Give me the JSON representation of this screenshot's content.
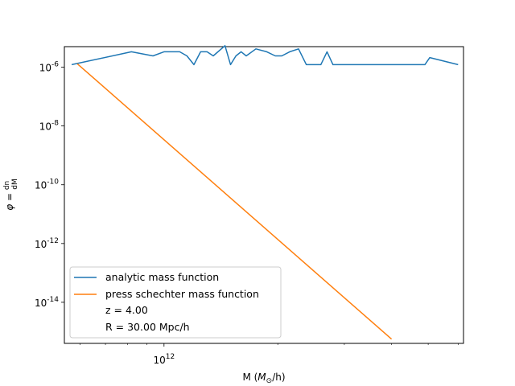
{
  "chart_data": {
    "type": "line",
    "xlabel": "M (M_⊙/h)",
    "ylabel": "φ = dn/dM",
    "x_scale": "log",
    "y_scale": "log",
    "xlim": [
      545000000000.0,
      6200000000000.0
    ],
    "ylim": [
      4e-16,
      5e-06
    ],
    "x_tick_labels": [
      {
        "value": 1000000000000.0,
        "label": "10^12"
      }
    ],
    "y_tick_labels": [
      {
        "value": 1e-06,
        "label": "10^-6"
      },
      {
        "value": 1e-08,
        "label": "10^-8"
      },
      {
        "value": 1e-10,
        "label": "10^-10"
      },
      {
        "value": 1e-12,
        "label": "10^-12"
      },
      {
        "value": 1e-14,
        "label": "10^-14"
      }
    ],
    "grid": false,
    "legend_position": "lower-left",
    "legend_extra_entries": [
      "z = 4.00",
      "R = 30.00 Mpc/h"
    ],
    "series": [
      {
        "name": "analytic mass function",
        "color": "#1f77b4",
        "points": [
          [
            570000000000.0,
            1.22e-06
          ],
          [
            820000000000.0,
            3.35e-06
          ],
          [
            935000000000.0,
            2.43e-06
          ],
          [
            1000000000000.0,
            3.35e-06
          ],
          [
            1100000000000.0,
            3.35e-06
          ],
          [
            1150000000000.0,
            2.43e-06
          ],
          [
            1200000000000.0,
            1.22e-06
          ],
          [
            1250000000000.0,
            3.35e-06
          ],
          [
            1300000000000.0,
            3.35e-06
          ],
          [
            1350000000000.0,
            2.43e-06
          ],
          [
            1450000000000.0,
            5.4e-06
          ],
          [
            1500000000000.0,
            1.22e-06
          ],
          [
            1550000000000.0,
            2.43e-06
          ],
          [
            1600000000000.0,
            3.35e-06
          ],
          [
            1650000000000.0,
            2.43e-06
          ],
          [
            1750000000000.0,
            4.2e-06
          ],
          [
            1870000000000.0,
            3.35e-06
          ],
          [
            1970000000000.0,
            2.43e-06
          ],
          [
            2050000000000.0,
            2.43e-06
          ],
          [
            2150000000000.0,
            3.35e-06
          ],
          [
            2270000000000.0,
            4.2e-06
          ],
          [
            2380000000000.0,
            1.22e-06
          ],
          [
            2600000000000.0,
            1.22e-06
          ],
          [
            2700000000000.0,
            3.35e-06
          ],
          [
            2800000000000.0,
            1.22e-06
          ],
          [
            4900000000000.0,
            1.22e-06
          ],
          [
            5050000000000.0,
            2.12e-06
          ],
          [
            6000000000000.0,
            1.22e-06
          ]
        ]
      },
      {
        "name": "press schechter mass function",
        "color": "#ff7f0e",
        "points": [
          [
            590000000000.0,
            1.3e-06
          ],
          [
            4000000000000.0,
            5.6e-16
          ]
        ]
      }
    ]
  }
}
